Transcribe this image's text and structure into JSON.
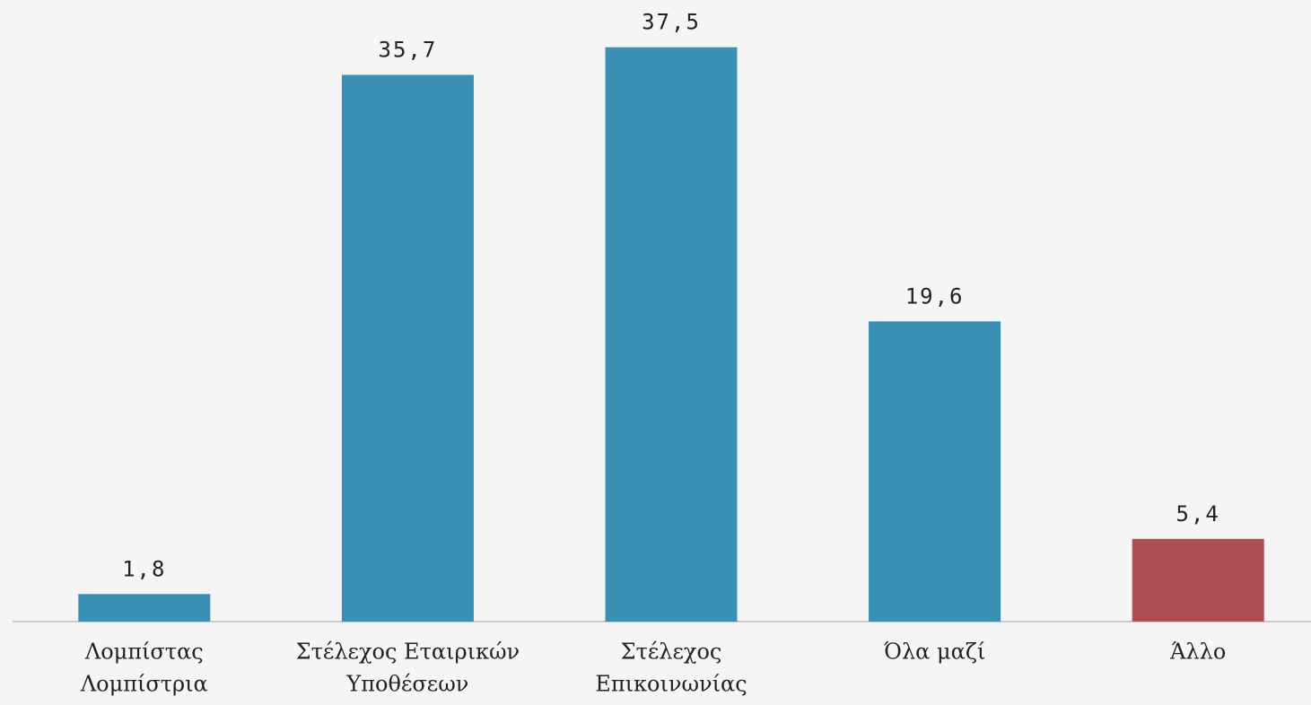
{
  "chart_data": {
    "type": "bar",
    "categories": [
      [
        "Λομπίστας",
        "Λομπίστρια"
      ],
      [
        "Στέλεχος Εταιρικών",
        "Υποθέσεων"
      ],
      [
        "Στέλεχος",
        "Επικοινωνίας"
      ],
      [
        "Όλα μαζί"
      ],
      [
        "Άλλο"
      ]
    ],
    "values": [
      1.8,
      35.7,
      37.5,
      19.6,
      5.4
    ],
    "value_labels": [
      "1,8",
      "35,7",
      "37,5",
      "19,6",
      "5,4"
    ],
    "colors": [
      "#3a8fb5",
      "#3a8fb5",
      "#3a8fb5",
      "#3a8fb5",
      "#ad4e55"
    ],
    "ylim": [
      0,
      40
    ]
  }
}
